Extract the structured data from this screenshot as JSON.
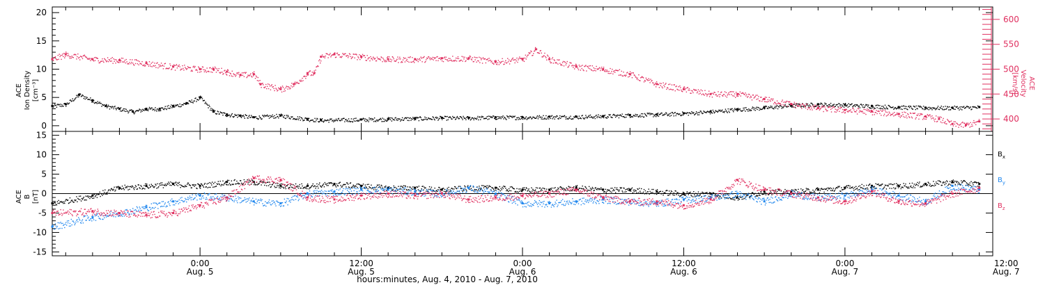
{
  "chart_data": [
    {
      "type": "scatter",
      "panel": "top",
      "title": "",
      "xlabel": "hours:minutes, Aug. 4, 2010 - Aug. 7, 2010",
      "x_ticks": [
        {
          "time": "0:00",
          "date": "Aug. 5"
        },
        {
          "time": "12:00",
          "date": "Aug. 5"
        },
        {
          "time": "0:00",
          "date": "Aug. 6"
        },
        {
          "time": "12:00",
          "date": "Aug. 6"
        },
        {
          "time": "0:00",
          "date": "Aug. 7"
        },
        {
          "time": "12:00",
          "date": "Aug. 7"
        }
      ],
      "xlim_hours_from_aug4_0000": [
        13,
        83
      ],
      "y_left": {
        "label_lines": [
          "ACE",
          "Ion Density",
          "[cm⁻³]"
        ],
        "ylim": [
          -1,
          21
        ],
        "ticks": [
          0,
          5,
          10,
          15,
          20
        ]
      },
      "y_right": {
        "label_lines": [
          "ACE",
          "Velocity",
          "[km/s]"
        ],
        "ylim": [
          375,
          625
        ],
        "ticks": [
          400,
          450,
          500,
          550,
          600
        ],
        "color": "#e03060"
      },
      "series": [
        {
          "name": "Ion Density",
          "axis": "left",
          "color": "#000000",
          "x_hours": [
            13.0,
            14.0,
            15.0,
            16.0,
            17.0,
            18.0,
            19.0,
            20.0,
            21.0,
            22.0,
            23.0,
            24.0,
            25.0,
            26.0,
            27.0,
            28.0,
            30.0,
            32.0,
            33.0,
            36.0,
            38.0,
            40.0,
            42.0,
            44.0,
            46.0,
            48.0,
            50.0,
            52.0,
            54.0,
            56.0,
            58.0,
            60.0,
            62.0,
            64.0,
            66.0,
            68.0,
            70.0,
            72.0,
            74.0,
            76.0,
            78.0,
            80.0,
            82.0
          ],
          "values": [
            3.5,
            3.8,
            5.5,
            4.5,
            3.5,
            3.0,
            2.5,
            3.0,
            3.0,
            3.5,
            4.0,
            5.0,
            2.5,
            2.0,
            1.8,
            1.5,
            1.8,
            1.2,
            1.0,
            1.1,
            1.2,
            1.3,
            1.4,
            1.4,
            1.5,
            1.5,
            1.6,
            1.6,
            1.7,
            1.9,
            2.0,
            2.2,
            2.5,
            2.9,
            3.2,
            3.6,
            3.8,
            3.7,
            3.5,
            3.3,
            3.2,
            3.2,
            3.3
          ]
        },
        {
          "name": "Velocity",
          "axis": "right",
          "color": "#e03060",
          "x_hours": [
            13.0,
            14.0,
            16.0,
            18.0,
            20.0,
            22.0,
            24.0,
            25.0,
            26.0,
            27.0,
            28.0,
            28.5,
            30.0,
            31.0,
            32.0,
            32.5,
            33.0,
            34.0,
            36.0,
            38.0,
            40.0,
            42.0,
            44.0,
            46.0,
            48.0,
            49.0,
            50.0,
            52.0,
            54.0,
            56.0,
            58.0,
            60.0,
            62.0,
            64.0,
            66.0,
            68.0,
            70.0,
            72.0,
            74.0,
            76.0,
            78.0,
            79.0,
            80.0,
            81.0,
            82.0
          ],
          "values": [
            520,
            530,
            520,
            518,
            512,
            505,
            500,
            500,
            495,
            488,
            490,
            470,
            460,
            470,
            492,
            492,
            525,
            530,
            525,
            520,
            520,
            522,
            522,
            515,
            520,
            540,
            520,
            505,
            500,
            490,
            470,
            460,
            450,
            450,
            440,
            430,
            422,
            418,
            415,
            410,
            405,
            400,
            390,
            388,
            395
          ]
        }
      ]
    },
    {
      "type": "scatter",
      "panel": "bottom",
      "title": "",
      "y": {
        "label_lines": [
          "ACE",
          "B",
          "[nT]"
        ],
        "ylim": [
          -16,
          16
        ],
        "ticks": [
          -15,
          -10,
          -5,
          0,
          5,
          10,
          15
        ]
      },
      "legend": [
        "Bx",
        "By",
        "Bz"
      ],
      "series": [
        {
          "name": "Bx",
          "color": "#000000",
          "x_hours": [
            13,
            16,
            18,
            20,
            22,
            24,
            26,
            28,
            30,
            32,
            34,
            36,
            38,
            40,
            42,
            44,
            46,
            48,
            50,
            52,
            54,
            56,
            58,
            60,
            62,
            64,
            66,
            68,
            70,
            72,
            74,
            76,
            78,
            80,
            82
          ],
          "values": [
            -2.5,
            -0.5,
            1.5,
            2.0,
            2.5,
            2.0,
            3.0,
            3.0,
            2.0,
            2.0,
            2.5,
            2.0,
            1.5,
            1.5,
            1.0,
            1.5,
            1.5,
            1.0,
            1.0,
            1.5,
            1.0,
            1.0,
            0.5,
            0.0,
            0.0,
            -1.0,
            0.5,
            0.5,
            1.0,
            1.5,
            2.0,
            2.0,
            2.5,
            3.0,
            2.5
          ]
        },
        {
          "name": "By",
          "color": "#2288ee",
          "x_hours": [
            13,
            16,
            18,
            20,
            22,
            24,
            26,
            28,
            30,
            32,
            34,
            36,
            38,
            40,
            42,
            44,
            46,
            48,
            50,
            52,
            54,
            56,
            58,
            60,
            62,
            64,
            66,
            68,
            70,
            72,
            74,
            76,
            78,
            80,
            82
          ],
          "values": [
            -8.5,
            -6.0,
            -5.0,
            -3.5,
            -2.0,
            -0.5,
            -1.0,
            -2.0,
            -2.5,
            0.0,
            0.5,
            1.0,
            1.0,
            0.5,
            0.0,
            1.5,
            0.0,
            -2.5,
            -2.5,
            -2.0,
            -1.5,
            -2.0,
            -2.5,
            -1.5,
            -1.0,
            0.0,
            -2.0,
            0.0,
            -1.0,
            -0.5,
            1.0,
            -0.5,
            -2.0,
            2.0,
            1.0
          ]
        },
        {
          "name": "Bz",
          "color": "#e03060",
          "x_hours": [
            13,
            16,
            18,
            20,
            22,
            24,
            26,
            28,
            30,
            32,
            34,
            36,
            38,
            40,
            42,
            44,
            46,
            48,
            50,
            52,
            54,
            56,
            58,
            60,
            62,
            64,
            66,
            68,
            70,
            72,
            74,
            76,
            78,
            80,
            82
          ],
          "values": [
            -5.0,
            -4.5,
            -5.0,
            -5.5,
            -5.0,
            -3.0,
            -1.0,
            4.0,
            3.5,
            -1.0,
            -1.5,
            -0.5,
            0.0,
            -0.5,
            0.0,
            -1.5,
            -1.0,
            -0.5,
            0.0,
            1.0,
            -1.0,
            -2.0,
            -2.0,
            -3.0,
            -1.5,
            3.5,
            1.0,
            0.0,
            -1.0,
            -2.0,
            0.5,
            -2.0,
            -2.5,
            0.0,
            1.5
          ]
        }
      ]
    }
  ]
}
